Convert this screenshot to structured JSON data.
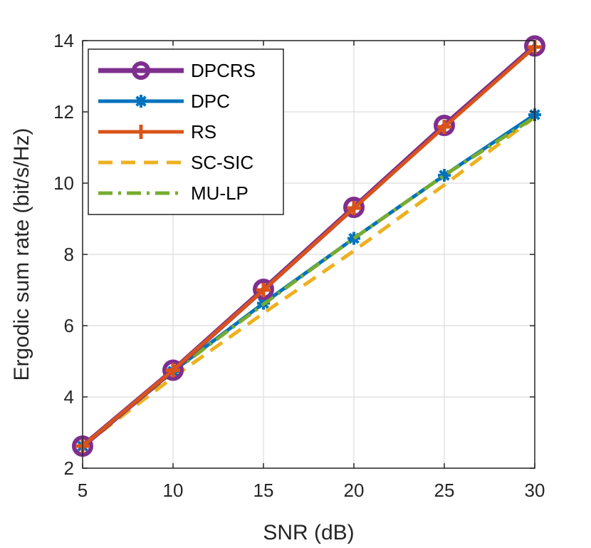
{
  "chart_data": {
    "type": "line",
    "title": "",
    "xlabel": "SNR (dB)",
    "ylabel": "Ergodic sum rate (bit/s/Hz)",
    "xlim": [
      5,
      30
    ],
    "ylim": [
      2,
      14
    ],
    "xticks": [
      5,
      10,
      15,
      20,
      25,
      30
    ],
    "yticks": [
      2,
      4,
      6,
      8,
      10,
      12,
      14
    ],
    "grid": true,
    "legend_position": "top-left",
    "x": [
      5,
      10,
      15,
      20,
      25,
      30
    ],
    "series": [
      {
        "name": "DPCRS",
        "values": [
          2.62,
          4.75,
          7.02,
          9.32,
          11.62,
          13.85
        ],
        "color": "#7E2F8E",
        "dash": "solid",
        "marker": "circle"
      },
      {
        "name": "DPC",
        "values": [
          2.62,
          4.72,
          6.63,
          8.45,
          10.22,
          11.92
        ],
        "color": "#0072BD",
        "dash": "solid",
        "marker": "asterisk"
      },
      {
        "name": "RS",
        "values": [
          2.62,
          4.75,
          7.0,
          9.3,
          11.58,
          13.82
        ],
        "color": "#D95319",
        "dash": "solid",
        "marker": "plus"
      },
      {
        "name": "SC-SIC",
        "values": [
          2.62,
          4.55,
          6.35,
          8.1,
          9.95,
          11.85
        ],
        "color": "#EDB120",
        "dash": "dashed",
        "marker": "none"
      },
      {
        "name": "MU-LP",
        "values": [
          2.62,
          4.7,
          6.6,
          8.45,
          10.22,
          11.85
        ],
        "color": "#77AC30",
        "dash": "dashdot",
        "marker": "none"
      }
    ]
  }
}
